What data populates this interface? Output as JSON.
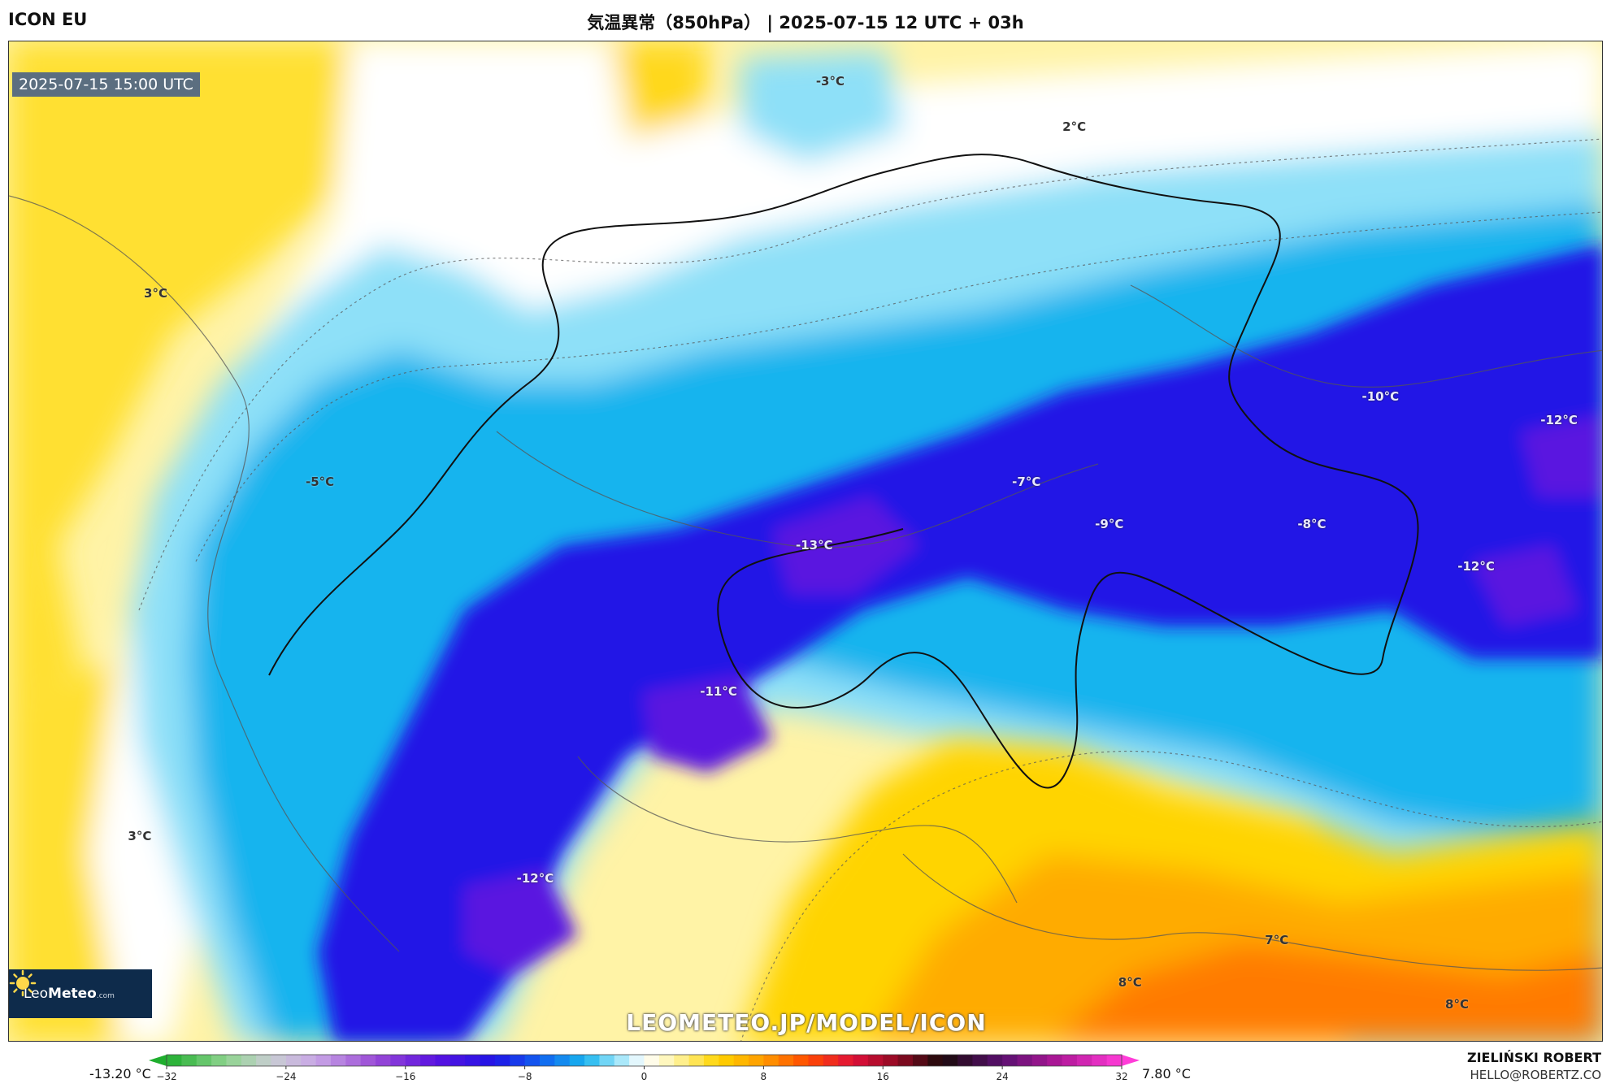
{
  "header": {
    "model": "ICON EU",
    "title": "気温異常（850hPa） | 2025-07-15 12 UTC + 03h"
  },
  "map": {
    "valid_time": "2025-07-15 15:00 UTC",
    "isotherm_labels": [
      {
        "text": "-3°C",
        "fx": 0.515,
        "fy": 0.04
      },
      {
        "text": "2°C",
        "fx": 0.668,
        "fy": 0.085
      },
      {
        "text": "3°C",
        "fx": 0.092,
        "fy": 0.252
      },
      {
        "text": "-5°C",
        "fx": 0.195,
        "fy": 0.44
      },
      {
        "text": "-10°C",
        "fx": 0.86,
        "fy": 0.355
      },
      {
        "text": "-12°C",
        "fx": 0.972,
        "fy": 0.378
      },
      {
        "text": "-7°C",
        "fx": 0.638,
        "fy": 0.44
      },
      {
        "text": "-9°C",
        "fx": 0.69,
        "fy": 0.482
      },
      {
        "text": "-8°C",
        "fx": 0.817,
        "fy": 0.482
      },
      {
        "text": "-13°C",
        "fx": 0.505,
        "fy": 0.503
      },
      {
        "text": "-12°C",
        "fx": 0.92,
        "fy": 0.524
      },
      {
        "text": "-11°C",
        "fx": 0.445,
        "fy": 0.649
      },
      {
        "text": "3°C",
        "fx": 0.082,
        "fy": 0.794
      },
      {
        "text": "-12°C",
        "fx": 0.33,
        "fy": 0.836
      },
      {
        "text": "7°C",
        "fx": 0.795,
        "fy": 0.898
      },
      {
        "text": "8°C",
        "fx": 0.703,
        "fy": 0.94
      },
      {
        "text": "8°C",
        "fx": 0.908,
        "fy": 0.962
      }
    ],
    "logo": {
      "brand_light": "Leo",
      "brand_bold": "Meteo",
      "suffix": ".com"
    },
    "watermark": "LEOMETEO.JP/MODEL/ICON"
  },
  "colorbar": {
    "min_label": "-13.20 °C",
    "max_label": "7.80 °C",
    "range": [
      -32,
      32
    ],
    "ticks": [
      "−32",
      "−24",
      "−16",
      "−8",
      "0",
      "8",
      "16",
      "24",
      "32"
    ],
    "stops": [
      {
        "v": -32,
        "c": "#1fae2e"
      },
      {
        "v": -28,
        "c": "#8fd48f"
      },
      {
        "v": -25,
        "c": "#c8cdd2"
      },
      {
        "v": -22,
        "c": "#c9a7e6"
      },
      {
        "v": -18,
        "c": "#9a4ad6"
      },
      {
        "v": -14,
        "c": "#5a12e0"
      },
      {
        "v": -10,
        "c": "#2014e6"
      },
      {
        "v": -7,
        "c": "#1060f0"
      },
      {
        "v": -4,
        "c": "#18b4ee"
      },
      {
        "v": -2,
        "c": "#8ee0f8"
      },
      {
        "v": 0,
        "c": "#ffffff"
      },
      {
        "v": 2,
        "c": "#fff4a8"
      },
      {
        "v": 5,
        "c": "#ffd400"
      },
      {
        "v": 8,
        "c": "#ff9a00"
      },
      {
        "v": 11,
        "c": "#ff4a00"
      },
      {
        "v": 14,
        "c": "#e0103a"
      },
      {
        "v": 17,
        "c": "#8e0a22"
      },
      {
        "v": 20,
        "c": "#1a0a0a"
      },
      {
        "v": 24,
        "c": "#5a1070"
      },
      {
        "v": 28,
        "c": "#b4189a"
      },
      {
        "v": 32,
        "c": "#ff3cd8"
      }
    ]
  },
  "credits": {
    "author": "ZIELIŃSKI ROBERT",
    "email": "HELLO@ROBERTZ.CO"
  }
}
